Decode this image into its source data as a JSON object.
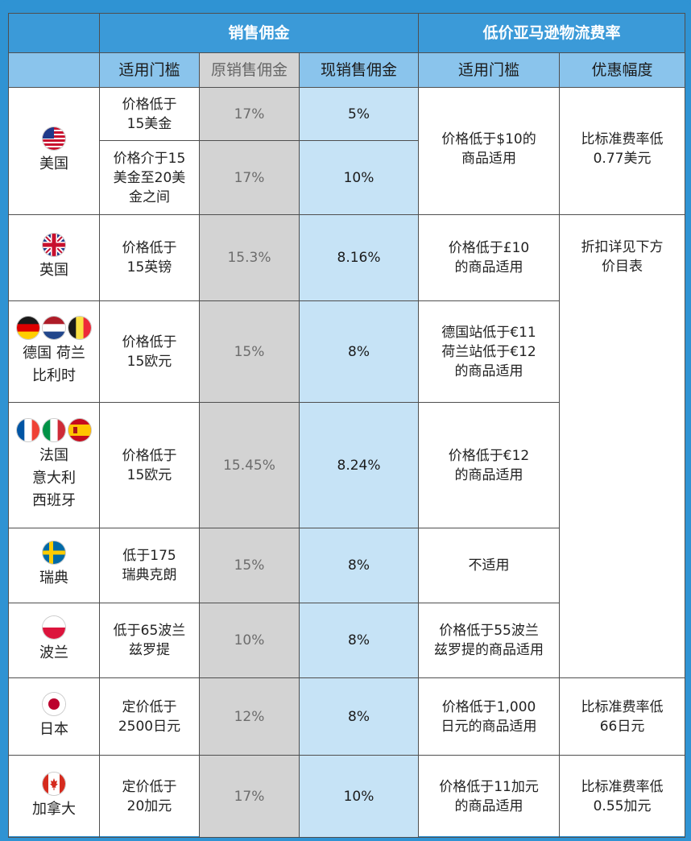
{
  "header": {
    "commission": "销售佣金",
    "fba": "低价亚马逊物流费率"
  },
  "subheader": {
    "threshold": "适用门槛",
    "original": "原销售佣金",
    "current": "现销售佣金",
    "fba_threshold": "适用门槛",
    "discount": "优惠幅度"
  },
  "rows": {
    "us": {
      "country": "美国",
      "tier1": {
        "threshold": "价格低于15美金",
        "t_line1": "价格低于",
        "t_line2": "15美金",
        "original": "17%",
        "current": "5%"
      },
      "tier2": {
        "t_line1": "价格介于15",
        "t_line2": "美金至20美",
        "t_line3": "金之间",
        "original": "17%",
        "current": "10%"
      },
      "fba_l1": "价格低于$10的",
      "fba_l2": "商品适用",
      "disc_l1": "比标准费率低",
      "disc_l2": "0.77美元"
    },
    "uk": {
      "country": "英国",
      "t_line1": "价格低于",
      "t_line2": "15英镑",
      "original": "15.3%",
      "current": "8.16%",
      "fba_l1": "价格低于£10",
      "fba_l2": "的商品适用",
      "disc_l1": "折扣详见下方",
      "disc_l2": "价目表"
    },
    "eu1": {
      "country_l1": "德国 荷兰",
      "country_l2": "比利时",
      "t_line1": "价格低于",
      "t_line2": "15欧元",
      "original": "15%",
      "current": "8%",
      "fba_l1": "德国站低于€11",
      "fba_l2": "荷兰站低于€12",
      "fba_l3": "的商品适用"
    },
    "eu2": {
      "country_l1": "法国",
      "country_l2": "意大利",
      "country_l3": "西班牙",
      "t_line1": "价格低于",
      "t_line2": "15欧元",
      "original": "15.45%",
      "current": "8.24%",
      "fba_l1": "价格低于€12",
      "fba_l2": "的商品适用"
    },
    "se": {
      "country": "瑞典",
      "t_line1": "低于175",
      "t_line2": "瑞典克朗",
      "original": "15%",
      "current": "8%",
      "fba": "不适用"
    },
    "pl": {
      "country": "波兰",
      "t_line1": "低于65波兰",
      "t_line2": "兹罗提",
      "original": "10%",
      "current": "8%",
      "fba_l1": "价格低于55波兰",
      "fba_l2": "兹罗提的商品适用"
    },
    "jp": {
      "country": "日本",
      "t_line1": "定价低于",
      "t_line2": "2500日元",
      "original": "12%",
      "current": "8%",
      "fba_l1": "价格低于1,000",
      "fba_l2": "日元的商品适用",
      "disc_l1": "比标准费率低",
      "disc_l2": "66日元"
    },
    "ca": {
      "country": "加拿大",
      "t_line1": "定价低于",
      "t_line2": "20加元",
      "original": "17%",
      "current": "10%",
      "fba_l1": "价格低于11加元",
      "fba_l2": "的商品适用",
      "disc_l1": "比标准费率低",
      "disc_l2": "0.55加元"
    }
  },
  "flags": [
    "us-flag-icon",
    "uk-flag-icon",
    "germany-flag-icon",
    "netherlands-flag-icon",
    "belgium-flag-icon",
    "france-flag-icon",
    "italy-flag-icon",
    "spain-flag-icon",
    "sweden-flag-icon",
    "poland-flag-icon",
    "japan-flag-icon",
    "canada-flag-icon"
  ],
  "colors": {
    "frame": "#2f93d3",
    "header_dark": "#3b9ad8",
    "header_light": "#8ac4ec",
    "original_col": "#d3d3d3",
    "current_col": "#c6e3f6"
  }
}
